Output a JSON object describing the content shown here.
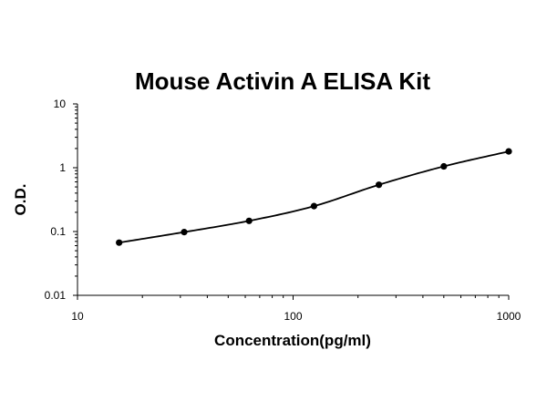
{
  "chart_data": {
    "type": "scatter",
    "title": "Mouse Activin A ELISA Kit",
    "xlabel": "Concentration(pg/ml)",
    "ylabel": "O.D.",
    "x_scale": "log",
    "y_scale": "log",
    "xlim": [
      10,
      1000
    ],
    "ylim": [
      0.01,
      10
    ],
    "x_tick_labels": [
      "10",
      "100",
      "1000"
    ],
    "y_tick_labels": [
      "10",
      "1",
      "0.1",
      "0.01"
    ],
    "grid": false,
    "legend": "none",
    "series": [
      {
        "x": [
          15.6,
          31.25,
          62.5,
          125,
          250,
          500,
          1000
        ],
        "y": [
          0.067,
          0.098,
          0.147,
          0.25,
          0.54,
          1.05,
          1.8
        ]
      }
    ],
    "colors": {
      "curve": "#000000",
      "points": "#000000",
      "axes": "#000000"
    }
  }
}
